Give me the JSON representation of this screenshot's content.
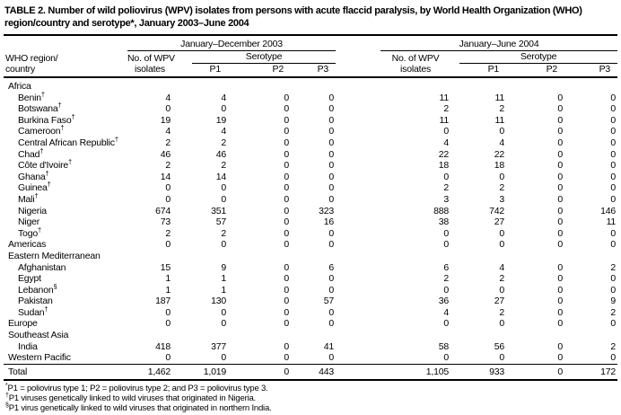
{
  "title": "TABLE 2. Number of wild poliovirus (WPV) isolates from persons with acute flaccid paralysis, by World Health Organization (WHO) region/country and serotype*, January 2003–June 2004",
  "header": {
    "group_2003": "January–December 2003",
    "group_2004": "January–June 2004",
    "region_line1": "WHO region/",
    "region_line2": "country",
    "isolates_line1": "No. of WPV",
    "isolates_line2": "isolates",
    "serotype": "Serotype",
    "p1": "P1",
    "p2": "P2",
    "p3": "P3"
  },
  "table": {
    "rows": [
      {
        "type": "section",
        "label": "Africa"
      },
      {
        "type": "country",
        "label": "Benin",
        "marker": "†",
        "values": [
          "4",
          "4",
          "0",
          "0",
          "11",
          "11",
          "0",
          "0"
        ]
      },
      {
        "type": "country",
        "label": "Botswana",
        "marker": "†",
        "values": [
          "0",
          "0",
          "0",
          "0",
          "2",
          "2",
          "0",
          "0"
        ]
      },
      {
        "type": "country",
        "label": "Burkina Faso",
        "marker": "†",
        "values": [
          "19",
          "19",
          "0",
          "0",
          "11",
          "11",
          "0",
          "0"
        ]
      },
      {
        "type": "country",
        "label": "Cameroon",
        "marker": "†",
        "values": [
          "4",
          "4",
          "0",
          "0",
          "0",
          "0",
          "0",
          "0"
        ]
      },
      {
        "type": "country",
        "label": "Central African Republic",
        "marker": "†",
        "values": [
          "2",
          "2",
          "0",
          "0",
          "4",
          "4",
          "0",
          "0"
        ]
      },
      {
        "type": "country",
        "label": "Chad",
        "marker": "†",
        "values": [
          "46",
          "46",
          "0",
          "0",
          "22",
          "22",
          "0",
          "0"
        ]
      },
      {
        "type": "country",
        "label": "Côte d'Ivoire",
        "marker": "†",
        "values": [
          "2",
          "2",
          "0",
          "0",
          "18",
          "18",
          "0",
          "0"
        ]
      },
      {
        "type": "country",
        "label": "Ghana",
        "marker": "†",
        "values": [
          "14",
          "14",
          "0",
          "0",
          "0",
          "0",
          "0",
          "0"
        ]
      },
      {
        "type": "country",
        "label": "Guinea",
        "marker": "†",
        "values": [
          "0",
          "0",
          "0",
          "0",
          "2",
          "2",
          "0",
          "0"
        ]
      },
      {
        "type": "country",
        "label": "Mali",
        "marker": "†",
        "values": [
          "0",
          "0",
          "0",
          "0",
          "3",
          "3",
          "0",
          "0"
        ]
      },
      {
        "type": "country",
        "label": "Nigeria",
        "values": [
          "674",
          "351",
          "0",
          "323",
          "888",
          "742",
          "0",
          "146"
        ]
      },
      {
        "type": "country",
        "label": "Niger",
        "values": [
          "73",
          "57",
          "0",
          "16",
          "38",
          "27",
          "0",
          "11"
        ]
      },
      {
        "type": "country",
        "label": "Togo",
        "marker": "†",
        "values": [
          "2",
          "2",
          "0",
          "0",
          "0",
          "0",
          "0",
          "0"
        ]
      },
      {
        "type": "region",
        "label": "Americas",
        "values": [
          "0",
          "0",
          "0",
          "0",
          "0",
          "0",
          "0",
          "0"
        ]
      },
      {
        "type": "section",
        "label": "Eastern Mediterranean"
      },
      {
        "type": "country",
        "label": "Afghanistan",
        "values": [
          "15",
          "9",
          "0",
          "6",
          "6",
          "4",
          "0",
          "2"
        ]
      },
      {
        "type": "country",
        "label": "Egypt",
        "values": [
          "1",
          "1",
          "0",
          "0",
          "2",
          "2",
          "0",
          "0"
        ]
      },
      {
        "type": "country",
        "label": "Lebanon",
        "marker": "§",
        "values": [
          "1",
          "1",
          "0",
          "0",
          "0",
          "0",
          "0",
          "0"
        ]
      },
      {
        "type": "country",
        "label": "Pakistan",
        "values": [
          "187",
          "130",
          "0",
          "57",
          "36",
          "27",
          "0",
          "9"
        ]
      },
      {
        "type": "country",
        "label": "Sudan",
        "marker": "†",
        "values": [
          "0",
          "0",
          "0",
          "0",
          "4",
          "2",
          "0",
          "2"
        ]
      },
      {
        "type": "region",
        "label": "Europe",
        "values": [
          "0",
          "0",
          "0",
          "0",
          "0",
          "0",
          "0",
          "0"
        ]
      },
      {
        "type": "section",
        "label": "Southeast Asia"
      },
      {
        "type": "country",
        "label": "India",
        "values": [
          "418",
          "377",
          "0",
          "41",
          "58",
          "56",
          "0",
          "2"
        ]
      },
      {
        "type": "region",
        "label": "Western Pacific",
        "values": [
          "0",
          "0",
          "0",
          "0",
          "0",
          "0",
          "0",
          "0"
        ]
      },
      {
        "type": "total",
        "label": "Total",
        "values": [
          "1,462",
          "1,019",
          "0",
          "443",
          "1,105",
          "933",
          "0",
          "172"
        ]
      }
    ]
  },
  "footnotes": [
    {
      "marker": "*",
      "text": "P1 = poliovirus type 1; P2 = poliovirus type 2; and P3 = poliovirus type 3."
    },
    {
      "marker": "†",
      "text": "P1 viruses genetically linked to wild viruses that originated in Nigeria."
    },
    {
      "marker": "§",
      "text": "P1 virus genetically linked to wild viruses that originated in northern India."
    }
  ]
}
